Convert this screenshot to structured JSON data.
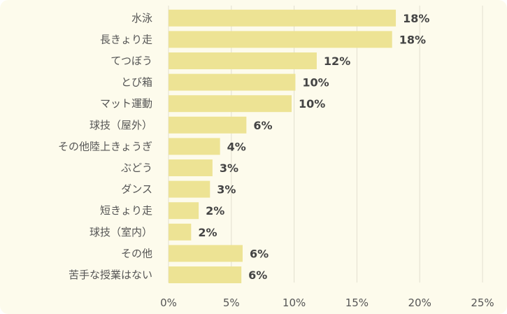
{
  "chart_data": {
    "type": "bar",
    "orientation": "horizontal",
    "categories": [
      "水泳",
      "長きょり走",
      "てつぼう",
      "とび箱",
      "マット運動",
      "球技（屋外）",
      "その他陸上きょうぎ",
      "ぶどう",
      "ダンス",
      "短きょり走",
      "球技（室内）",
      "その他",
      "苦手な授業はない"
    ],
    "values": [
      18.1,
      17.8,
      11.8,
      10.1,
      9.8,
      6.2,
      4.1,
      3.5,
      3.3,
      2.4,
      1.8,
      5.9,
      5.8
    ],
    "data_labels": [
      "18%",
      "18%",
      "12%",
      "10%",
      "10%",
      "6%",
      "4%",
      "3%",
      "3%",
      "2%",
      "2%",
      "6%",
      "6%"
    ],
    "xlim": [
      0,
      25
    ],
    "x_ticks": [
      0,
      5,
      10,
      15,
      20,
      25
    ],
    "x_tick_labels": [
      "0%",
      "5%",
      "10%",
      "15%",
      "20%",
      "25%"
    ],
    "grid": true,
    "colors": {
      "bar": "#ede394",
      "background": "#fdfbec",
      "grid": "#e2dfcf"
    }
  }
}
